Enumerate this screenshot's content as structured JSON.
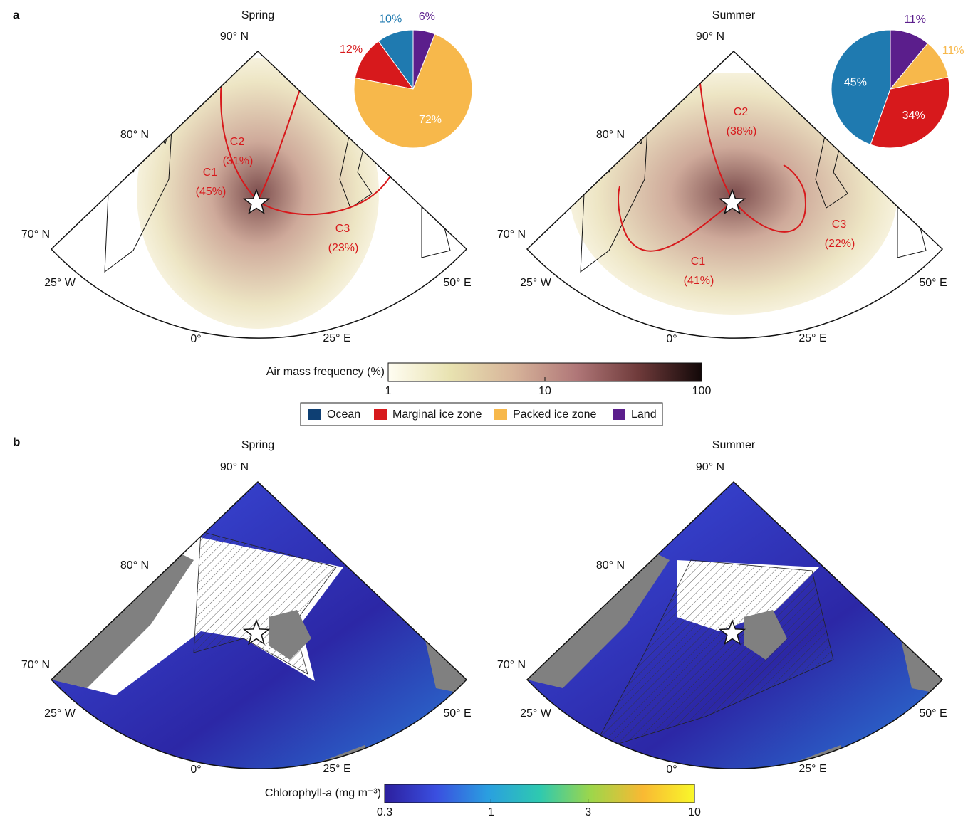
{
  "panel_labels": [
    "a",
    "b"
  ],
  "chart_data": [
    {
      "type": "pie",
      "values": [
        10,
        12,
        72,
        6
      ],
      "value_labels": [
        "10%",
        "12%",
        "72%",
        "6%"
      ],
      "colors": [
        "#1f7ab0",
        "#d7191c",
        "#f7b84b",
        "#5b1e8c"
      ]
    },
    {
      "type": "pie",
      "values": [
        45,
        34,
        11,
        11
      ],
      "value_labels": [
        "45%",
        "34%",
        "11%",
        "11%"
      ],
      "colors": [
        "#1f7ab0",
        "#d7191c",
        "#f7b84b",
        "#5b1e8c"
      ]
    }
  ],
  "legend": [
    {
      "label": "Ocean",
      "color": "#0e3f73"
    },
    {
      "label": "Marginal ice zone",
      "color": "#d7191c"
    },
    {
      "label": "Packed ice zone",
      "color": "#f7b84b"
    },
    {
      "label": "Land",
      "color": "#5b1e8c"
    }
  ],
  "maps": [
    {
      "title": "Spring",
      "lat_labels": [
        "90° N",
        "80° N",
        "70° N"
      ],
      "lon_labels": [
        "25° W",
        "0°",
        "25° E",
        "50° E"
      ],
      "clusters": [
        {
          "name": "C1",
          "share": "(45%)"
        },
        {
          "name": "C2",
          "share": "(31%)"
        },
        {
          "name": "C3",
          "share": "(23%)"
        }
      ]
    },
    {
      "title": "Summer",
      "lat_labels": [
        "90° N",
        "80° N",
        "70° N"
      ],
      "lon_labels": [
        "25° W",
        "0°",
        "25° E",
        "50° E"
      ],
      "clusters": [
        {
          "name": "C2",
          "share": "(38%)"
        },
        {
          "name": "C1",
          "share": "(41%)"
        },
        {
          "name": "C3",
          "share": "(22%)"
        }
      ]
    },
    {
      "title": "Spring",
      "lat_labels": [
        "90° N",
        "80° N",
        "70° N"
      ],
      "lon_labels": [
        "25° W",
        "0°",
        "25° E",
        "50° E"
      ]
    },
    {
      "title": "Summer",
      "lat_labels": [
        "90° N",
        "80° N",
        "70° N"
      ],
      "lon_labels": [
        "25° W",
        "0°",
        "25° E",
        "50° E"
      ]
    }
  ],
  "colorbars": [
    {
      "label": "Air mass frequency (%)",
      "lim": [
        1,
        100
      ],
      "ticks": [
        1,
        10,
        100
      ],
      "log": true,
      "colors": [
        "#fffdf2",
        "#e8e2b0",
        "#d7b49a",
        "#b07778",
        "#6e3a3a",
        "#120808"
      ]
    },
    {
      "label": "Chlorophyll-a (mg m⁻³)",
      "lim": [
        0.3,
        10
      ],
      "ticks": [
        0.3,
        1,
        3,
        10
      ],
      "log": true,
      "colors": [
        "#2c1f9e",
        "#3a4fe0",
        "#2a9fe0",
        "#2ec9b0",
        "#9ed64a",
        "#f9b933",
        "#f9f72a"
      ]
    }
  ]
}
